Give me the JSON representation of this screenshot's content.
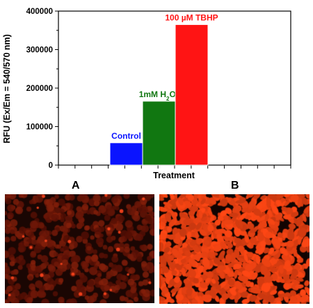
{
  "chart_data": {
    "type": "bar",
    "categories": [
      "Control",
      "1mM H2O2",
      "100 µM TBHP"
    ],
    "values": [
      58000,
      166000,
      365000
    ],
    "colors": [
      "#0a14ff",
      "#117711",
      "#ff1414"
    ],
    "bar_labels": [
      {
        "text": "Control",
        "color": "#0a14ff",
        "sub": ""
      },
      {
        "text": "1mM H",
        "sub": "2",
        "tail": "O",
        "sub2": "2",
        "color": "#117711"
      },
      {
        "text": "100 µM TBHP",
        "color": "#ff1414",
        "sub": ""
      }
    ],
    "xlabel": "Treatment",
    "ylabel": "RFU (Ex/Em = 540/570 nm)",
    "ylim": [
      0,
      400000
    ],
    "yticks": [
      "0",
      "100000",
      "200000",
      "300000",
      "400000"
    ],
    "ytick_values": [
      0,
      100000,
      200000,
      300000,
      400000
    ],
    "grid": false
  },
  "panels": {
    "a_label": "A",
    "b_label": "B"
  }
}
